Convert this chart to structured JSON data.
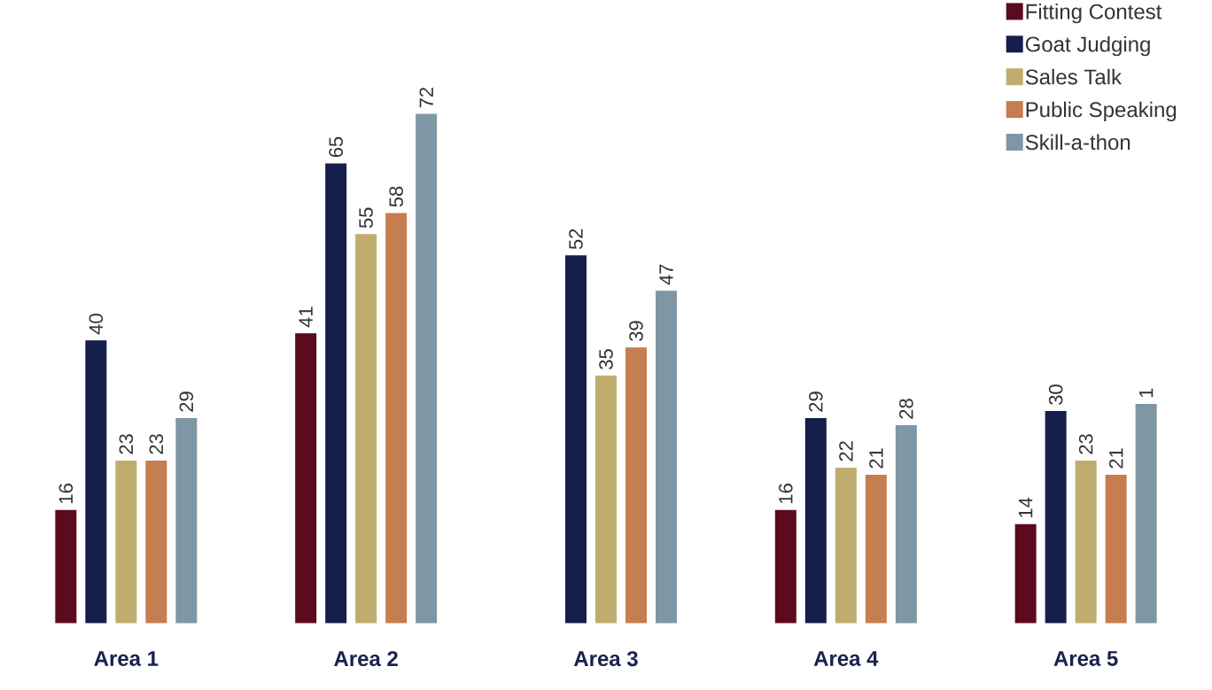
{
  "chart_data": {
    "type": "bar",
    "categories": [
      "Area 1",
      "Area 2",
      "Area 3",
      "Area 4",
      "Area 5"
    ],
    "series": [
      {
        "name": "Fitting Contest",
        "color": "#5c0a1e",
        "values": [
          16,
          41,
          null,
          16,
          14
        ],
        "value_labels": [
          "16",
          "41",
          null,
          "16",
          "14"
        ]
      },
      {
        "name": "Goat Judging",
        "color": "#161e4c",
        "values": [
          40,
          65,
          52,
          29,
          30
        ],
        "value_labels": [
          "40",
          "65",
          "52",
          "29",
          "30"
        ]
      },
      {
        "name": "Sales Talk",
        "color": "#c0ac6e",
        "values": [
          23,
          55,
          35,
          22,
          23
        ],
        "value_labels": [
          "23",
          "55",
          "35",
          "22",
          "23"
        ]
      },
      {
        "name": "Public Speaking",
        "color": "#c67d50",
        "values": [
          23,
          58,
          39,
          21,
          21
        ],
        "value_labels": [
          "23",
          "58",
          "39",
          "21",
          "21"
        ]
      },
      {
        "name": "Skill-a-thon",
        "color": "#7f96a4",
        "values": [
          29,
          72,
          47,
          28,
          31
        ],
        "value_labels": [
          "29",
          "72",
          "47",
          "28",
          null
        ]
      }
    ],
    "annotations": [
      "1"
    ],
    "legend": "top right"
  }
}
